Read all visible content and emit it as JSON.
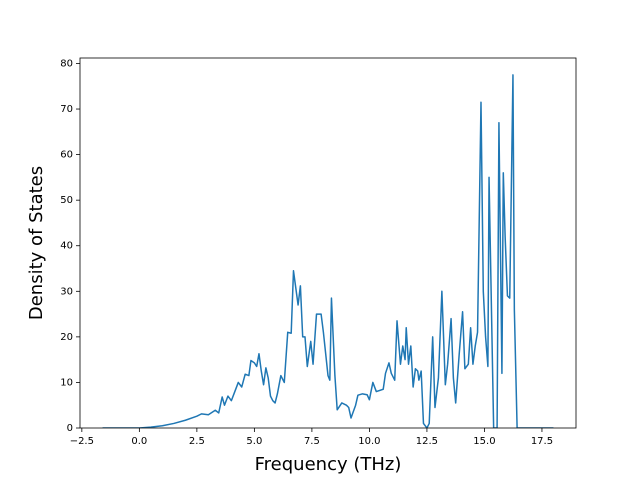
{
  "chart_data": {
    "type": "line",
    "xlabel": "Frequency (THz)",
    "ylabel": "Density of States",
    "xlim": [
      -2.58,
      18.98
    ],
    "ylim": [
      0,
      81.2
    ],
    "xticks": [
      {
        "value": -2.5,
        "label": "−2.5"
      },
      {
        "value": 0,
        "label": "0.0"
      },
      {
        "value": 2.5,
        "label": "2.5"
      },
      {
        "value": 5,
        "label": "5.0"
      },
      {
        "value": 7.5,
        "label": "7.5"
      },
      {
        "value": 10,
        "label": "10.0"
      },
      {
        "value": 12.5,
        "label": "12.5"
      },
      {
        "value": 15,
        "label": "15.0"
      },
      {
        "value": 17.5,
        "label": "17.5"
      }
    ],
    "yticks": [
      0,
      10,
      20,
      30,
      40,
      50,
      60,
      70,
      80
    ],
    "series": [
      {
        "color": "#1f77b4",
        "x": [
          -1.6,
          0,
          0.5,
          1.0,
          1.5,
          2.0,
          2.5,
          2.7,
          3.0,
          3.3,
          3.45,
          3.6,
          3.7,
          3.85,
          4.0,
          4.15,
          4.3,
          4.45,
          4.6,
          4.76,
          4.85,
          5.0,
          5.1,
          5.2,
          5.3,
          5.4,
          5.5,
          5.6,
          5.7,
          5.8,
          5.9,
          6.0,
          6.15,
          6.3,
          6.45,
          6.6,
          6.7,
          6.9,
          7.0,
          7.1,
          7.2,
          7.3,
          7.45,
          7.55,
          7.7,
          7.9,
          8.0,
          8.2,
          8.28,
          8.35,
          8.5,
          8.6,
          8.8,
          9.0,
          9.1,
          9.2,
          9.4,
          9.5,
          9.7,
          9.9,
          10.0,
          10.05,
          10.15,
          10.3,
          10.6,
          10.7,
          10.85,
          10.95,
          11.1,
          11.2,
          11.35,
          11.45,
          11.55,
          11.6,
          11.7,
          11.8,
          11.9,
          12.0,
          12.1,
          12.15,
          12.25,
          12.35,
          12.5,
          12.6,
          12.75,
          12.85,
          13.0,
          13.15,
          13.3,
          13.4,
          13.55,
          13.65,
          13.75,
          13.9,
          14.05,
          14.15,
          14.3,
          14.4,
          14.5,
          14.6,
          14.7,
          14.85,
          14.95,
          15.05,
          15.15,
          15.2,
          15.4,
          15.55,
          15.63,
          15.76,
          15.82,
          15.9,
          16.0,
          16.1,
          16.24,
          16.3,
          16.42,
          18.0
        ],
        "values": [
          0,
          0,
          0.2,
          0.5,
          1.0,
          1.7,
          2.6,
          3.1,
          2.9,
          3.9,
          3.3,
          6.8,
          5.0,
          7.0,
          6.0,
          8.0,
          10.0,
          9.0,
          11.8,
          11.5,
          14.8,
          14.3,
          13.5,
          16.3,
          12.5,
          9.5,
          13.2,
          11.0,
          7.0,
          6.0,
          5.5,
          7.5,
          11.5,
          10.0,
          21.0,
          20.8,
          34.5,
          27.0,
          31.2,
          20.0,
          20.0,
          13.5,
          19.0,
          14.0,
          25.0,
          25.0,
          21.0,
          11.5,
          10.5,
          28.5,
          11.5,
          4.0,
          5.5,
          5.0,
          4.5,
          2.2,
          5.0,
          7.2,
          7.5,
          7.3,
          6.2,
          7.5,
          10.0,
          8.0,
          8.5,
          12.0,
          14.3,
          12.0,
          10.5,
          23.5,
          14.0,
          18.0,
          15.0,
          22.0,
          14.0,
          18.0,
          9.0,
          13.0,
          12.5,
          10.5,
          12.5,
          1.0,
          0,
          1.0,
          20.0,
          4.5,
          11.0,
          30.0,
          9.5,
          14.0,
          24.0,
          11.0,
          5.5,
          16.0,
          25.5,
          13.0,
          14.0,
          22.0,
          14.0,
          18.0,
          21.0,
          71.5,
          30.0,
          20.0,
          13.5,
          55.0,
          0,
          0,
          67.0,
          12.0,
          56.0,
          42.0,
          29.0,
          28.5,
          77.5,
          26.0,
          0,
          0
        ]
      }
    ]
  }
}
